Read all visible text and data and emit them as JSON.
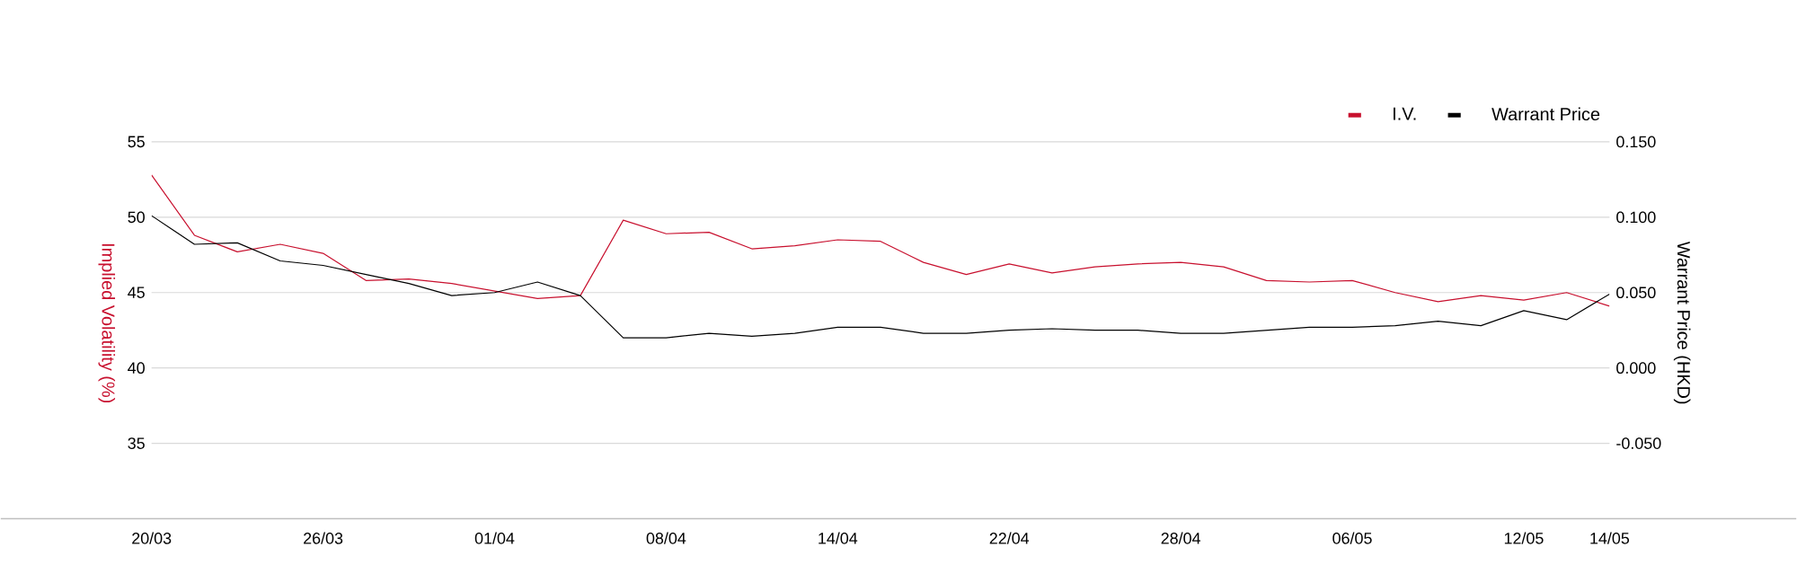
{
  "chart_data": {
    "type": "line",
    "categories": [
      "20/03",
      null,
      null,
      null,
      "26/03",
      null,
      null,
      null,
      "01/04",
      null,
      null,
      null,
      "08/04",
      null,
      null,
      null,
      "14/04",
      null,
      null,
      null,
      "22/04",
      null,
      null,
      null,
      "28/04",
      null,
      null,
      null,
      "06/05",
      null,
      null,
      null,
      "12/05",
      null,
      "14/05"
    ],
    "series": [
      {
        "name": "I.V.",
        "color": "#c8102e",
        "values": [
          52.8,
          48.8,
          47.7,
          48.2,
          47.6,
          45.8,
          45.9,
          45.6,
          45.1,
          44.6,
          44.8,
          49.8,
          48.9,
          49.0,
          47.9,
          48.1,
          48.5,
          48.4,
          47.0,
          46.2,
          46.9,
          46.3,
          46.7,
          46.9,
          47.0,
          46.7,
          45.8,
          45.7,
          45.8,
          45.0,
          44.4,
          44.8,
          44.5,
          45.0,
          44.1
        ]
      },
      {
        "name": "Warrant Price",
        "color": "#000000",
        "axis": "y2",
        "values": [
          0.101,
          0.082,
          0.083,
          0.071,
          0.068,
          0.062,
          0.056,
          0.048,
          0.05,
          0.057,
          0.048,
          0.02,
          0.02,
          0.023,
          0.021,
          0.023,
          0.027,
          0.027,
          0.023,
          0.023,
          0.025,
          0.026,
          0.025,
          0.025,
          0.023,
          0.023,
          0.025,
          0.027,
          0.027,
          0.028,
          0.031,
          0.028,
          0.038,
          0.032,
          0.049
        ]
      }
    ],
    "ylabel": "Implied Volatility (%)",
    "y2label": "Warrant Price (HKD)",
    "ylim": [
      30,
      55
    ],
    "yticks": [
      35,
      40,
      45,
      50,
      55
    ],
    "y2lim": [
      -0.1,
      0.15
    ],
    "y2ticks": [
      {
        "value": -0.05,
        "label": "-0.050"
      },
      {
        "value": 0,
        "label": "0.000"
      },
      {
        "value": 0.05,
        "label": "0.050"
      },
      {
        "value": 0.1,
        "label": "0.100"
      },
      {
        "value": 0.15,
        "label": "0.150"
      }
    ],
    "grid": "y",
    "legend": "top right",
    "marker": "none",
    "line_style": "solid"
  }
}
